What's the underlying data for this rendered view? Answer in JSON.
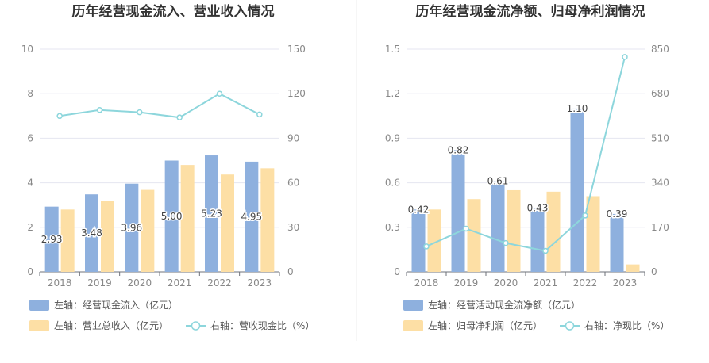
{
  "chart_data": [
    {
      "type": "bar",
      "title": "历年经营现金流入、营业收入情况",
      "categories": [
        "2018",
        "2019",
        "2020",
        "2021",
        "2022",
        "2023"
      ],
      "left_axis": {
        "ylim": [
          0,
          10
        ],
        "ticks": [
          "0",
          "2",
          "4",
          "6",
          "8",
          "10"
        ]
      },
      "right_axis": {
        "ylim": [
          0,
          150
        ],
        "ticks": [
          "0",
          "30",
          "60",
          "90",
          "120",
          "150"
        ]
      },
      "series": [
        {
          "name": "左轴：经营现金流入（亿元）",
          "kind": "bar",
          "axis": "left",
          "color": "#8eb0de",
          "values": [
            2.93,
            3.48,
            3.96,
            5.0,
            5.23,
            4.95
          ],
          "labels": [
            "2.93",
            "3.48",
            "3.96",
            "5.00",
            "5.23",
            "4.95"
          ]
        },
        {
          "name": "左轴：营业总收入（亿元）",
          "kind": "bar",
          "axis": "left",
          "color": "#fddfa5",
          "values": [
            2.8,
            3.2,
            3.68,
            4.8,
            4.37,
            4.65
          ]
        },
        {
          "name": "右轴：营收现金比（%）",
          "kind": "line",
          "axis": "right",
          "color": "#8dd6dc",
          "values": [
            105,
            109,
            107.5,
            104,
            120,
            106
          ]
        }
      ]
    },
    {
      "type": "bar",
      "title": "历年经营现金流净额、归母净利润情况",
      "categories": [
        "2018",
        "2019",
        "2020",
        "2021",
        "2022",
        "2023"
      ],
      "left_axis": {
        "ylim": [
          0,
          1.5
        ],
        "ticks": [
          "0",
          "0.3",
          "0.6",
          "0.9",
          "1.2",
          "1.5"
        ]
      },
      "right_axis": {
        "ylim": [
          0,
          850
        ],
        "ticks": [
          "0",
          "170",
          "340",
          "510",
          "680",
          "850"
        ]
      },
      "series": [
        {
          "name": "左轴：经营活动现金流净额（亿元）",
          "kind": "bar",
          "axis": "left",
          "color": "#8eb0de",
          "values": [
            0.42,
            0.82,
            0.61,
            0.43,
            1.1,
            0.39
          ],
          "labels": [
            "0.42",
            "0.82",
            "0.61",
            "0.43",
            "1.10",
            "0.39"
          ]
        },
        {
          "name": "左轴：归母净利润（亿元）",
          "kind": "bar",
          "axis": "left",
          "color": "#fddfa5",
          "values": [
            0.42,
            0.49,
            0.55,
            0.54,
            0.51,
            0.05
          ]
        },
        {
          "name": "右轴：净现比（%）",
          "kind": "line",
          "axis": "right",
          "color": "#8dd6dc",
          "values": [
            97,
            165,
            110,
            80,
            215,
            820
          ]
        }
      ]
    }
  ]
}
